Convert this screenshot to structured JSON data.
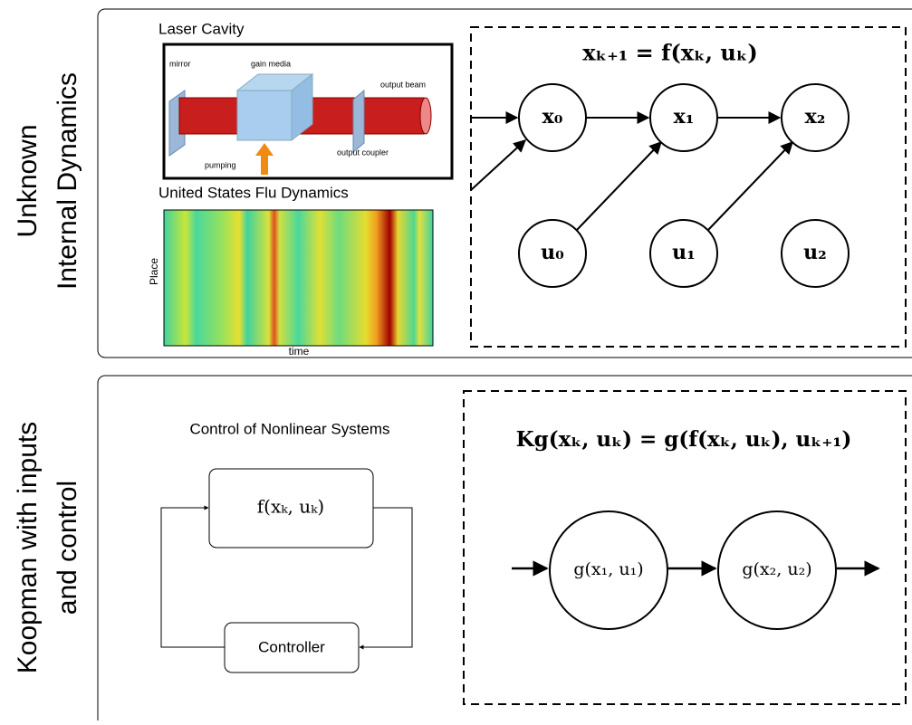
{
  "panels": [
    {
      "side_label": [
        "Unknown",
        "Internal Dynamics"
      ],
      "laser_cavity": {
        "title": "Laser Cavity",
        "labels": {
          "mirror": "mirror",
          "gain_media": "gain media",
          "output_beam": "output beam",
          "output_coupler": "output coupler",
          "pumping": "pumping"
        }
      },
      "flu": {
        "title": "United States Flu Dynamics",
        "y_label": "Place",
        "x_label": "time"
      },
      "equation": "xₖ₊₁ = f(xₖ, uₖ)",
      "nodes": [
        "x₀",
        "x₁",
        "x₂",
        "u₀",
        "u₁",
        "u₂"
      ]
    },
    {
      "side_label": [
        "Koopman with inputs",
        "and control"
      ],
      "control": {
        "title": "Control of Nonlinear Systems",
        "plant": "f(xₖ, uₖ)",
        "controller": "Controller"
      },
      "equation": "Kg(xₖ, uₖ) = g(f(xₖ, uₖ), uₖ₊₁)",
      "nodes": [
        "g(x₁, u₁)",
        "g(x₂, u₂)"
      ]
    }
  ]
}
